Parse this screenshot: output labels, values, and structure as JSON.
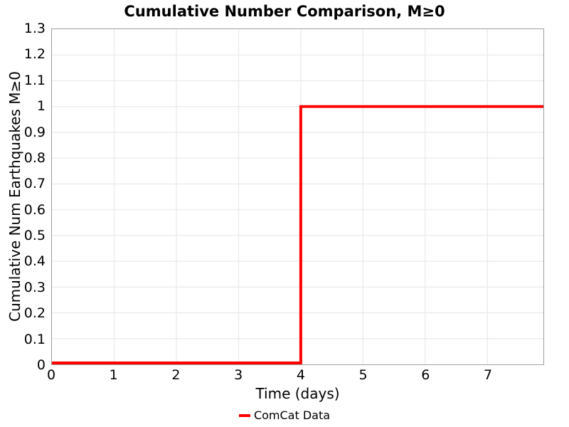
{
  "chart_data": {
    "type": "line",
    "subtype": "step",
    "title": "Cumulative Number Comparison, M≥0",
    "xlabel": "Time (days)",
    "ylabel": "Cumulative Num Earthquakes M≥0",
    "xlim": [
      0,
      7.9
    ],
    "ylim": [
      0,
      1.3
    ],
    "xticks": {
      "values": [
        0,
        1,
        2,
        3,
        4,
        5,
        6,
        7
      ],
      "labels": [
        "0",
        "1",
        "2",
        "3",
        "4",
        "5",
        "6",
        "7"
      ]
    },
    "yticks": {
      "values": [
        0,
        0.1,
        0.2,
        0.3,
        0.4,
        0.5,
        0.6,
        0.7,
        0.8,
        0.9,
        1.0,
        1.1,
        1.2,
        1.3
      ],
      "labels": [
        "0",
        "0.1",
        "0.2",
        "0.3",
        "0.4",
        "0.5",
        "0.6",
        "0.7",
        "0.8",
        "0.9",
        "1",
        "1.1",
        "1.2",
        "1.3"
      ]
    },
    "grid": {
      "show": true,
      "color": "#ececec"
    },
    "axis_border_color": "#a0a0a0",
    "series": [
      {
        "name": "ComCat Data",
        "color": "#ff0000",
        "line_width": 4,
        "points": [
          [
            0,
            0
          ],
          [
            4,
            0
          ],
          [
            4,
            1
          ],
          [
            7.9,
            1
          ]
        ]
      }
    ],
    "legend": {
      "position": "bottom-center",
      "entries": [
        {
          "label": "ComCat Data",
          "color": "#ff0000"
        }
      ]
    }
  }
}
